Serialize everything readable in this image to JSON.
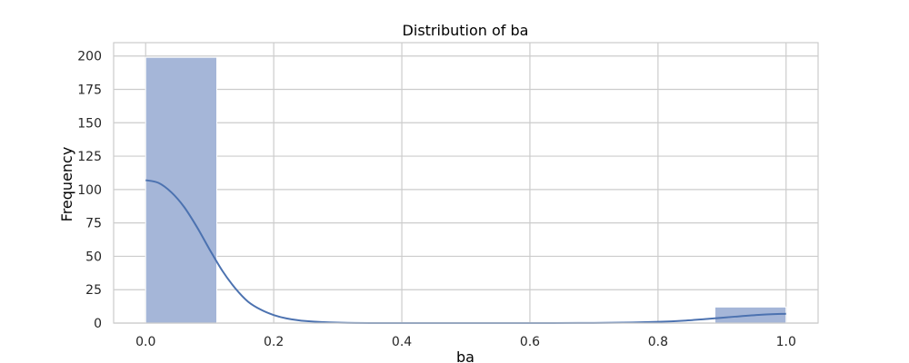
{
  "chart_data": {
    "type": "bar",
    "title": "Distribution of ba",
    "xlabel": "ba",
    "ylabel": "Frequency",
    "xlim": [
      -0.05,
      1.05
    ],
    "ylim": [
      0,
      210
    ],
    "x_ticks": [
      "0.0",
      "0.2",
      "0.4",
      "0.6",
      "0.8",
      "1.0"
    ],
    "y_ticks": [
      "0",
      "25",
      "50",
      "75",
      "100",
      "125",
      "150",
      "175",
      "200"
    ],
    "grid": true,
    "histogram": {
      "bin_edges": [
        0.0,
        0.1111,
        0.2222,
        0.3333,
        0.4444,
        0.5556,
        0.6667,
        0.7778,
        0.8889,
        1.0
      ],
      "counts": [
        199,
        0,
        0,
        0,
        0,
        0,
        0,
        0,
        12
      ]
    },
    "kde": {
      "x": [
        0.0,
        0.02,
        0.04,
        0.06,
        0.08,
        0.1,
        0.12,
        0.14,
        0.16,
        0.18,
        0.2,
        0.22,
        0.25,
        0.3,
        0.4,
        0.5,
        0.6,
        0.7,
        0.76,
        0.8,
        0.84,
        0.88,
        0.92,
        0.96,
        1.0
      ],
      "y": [
        107,
        105,
        98,
        87,
        72,
        55,
        39,
        26,
        16,
        10,
        6,
        3.5,
        1.5,
        0.3,
        0,
        0,
        0,
        0.1,
        0.4,
        0.9,
        1.8,
        3.2,
        4.8,
        6.2,
        7
      ]
    },
    "colors": {
      "bar": "#a5b6d8",
      "bar_edge": "#ffffff",
      "kde": "#4c72b0",
      "grid": "#cccccc",
      "frame": "#cccccc"
    }
  }
}
